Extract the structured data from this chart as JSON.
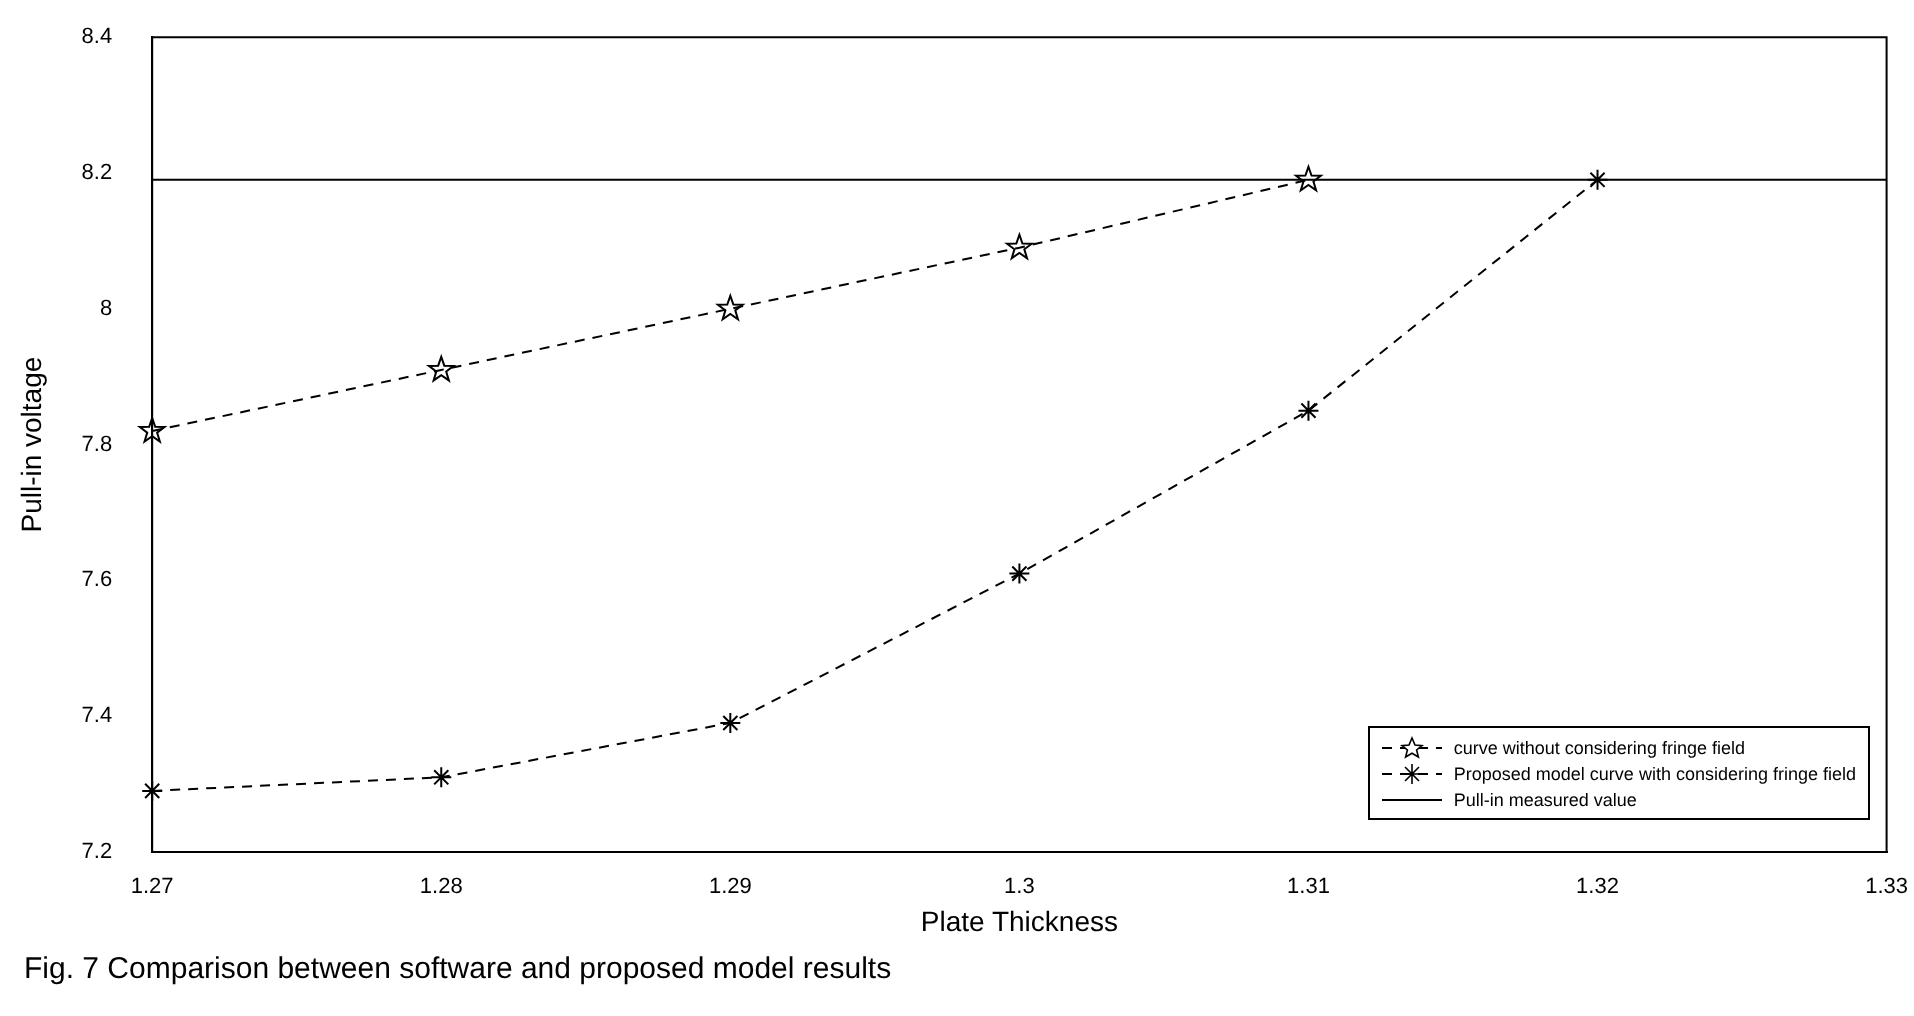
{
  "chart_data": {
    "type": "line",
    "xlabel": "Plate Thickness",
    "ylabel": "Pull-in voltage",
    "xlim": [
      1.27,
      1.33
    ],
    "xticks": [
      1.27,
      1.28,
      1.29,
      1.3,
      1.31,
      1.32,
      1.33
    ],
    "ylim": [
      7.2,
      8.4
    ],
    "yticks": [
      7.2,
      7.4,
      7.6,
      7.8,
      8,
      8.2,
      8.4
    ],
    "grid": false,
    "legend": "bottom right",
    "series": [
      {
        "name": "curve without considering fringe field",
        "color": "#000000",
        "marker": "star",
        "line_style": "dashed",
        "x": [
          1.27,
          1.28,
          1.29,
          1.3,
          1.31
        ],
        "values": [
          7.82,
          7.91,
          8.0,
          8.09,
          8.19
        ]
      },
      {
        "name": "Proposed model curve with considering fringe field",
        "color": "#000000",
        "marker": "cross",
        "line_style": "dashed",
        "x": [
          1.27,
          1.28,
          1.29,
          1.3,
          1.31,
          1.32
        ],
        "values": [
          7.29,
          7.31,
          7.39,
          7.61,
          7.85,
          8.19
        ]
      },
      {
        "name": "Pull-in measured value",
        "color": "#000000",
        "marker": "none",
        "line_style": "solid",
        "x": [
          1.27,
          1.33
        ],
        "values": [
          8.19,
          8.19
        ]
      }
    ],
    "annotations": [
      "Fig. 7  Comparison between software and proposed model results"
    ]
  }
}
